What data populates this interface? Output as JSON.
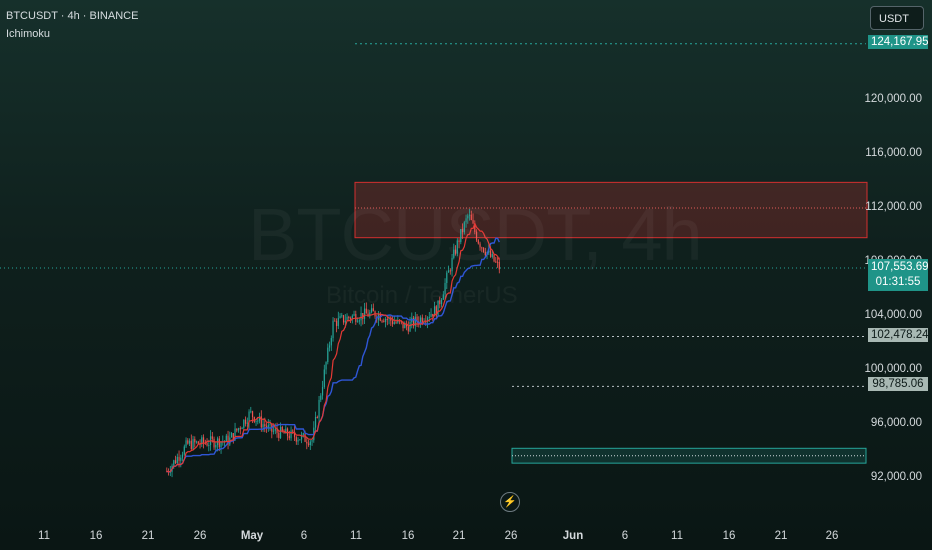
{
  "header": {
    "symbol_line": "BTCUSDT · 4h · BINANCE",
    "indicator": "Ichimoku"
  },
  "currency_button": "USDT",
  "watermark": {
    "main": "BTCUSDT, 4h",
    "sub": "Bitcoin / TetherUS"
  },
  "colors": {
    "up": "#26a69a",
    "down": "#ef5350",
    "tenkan": "#e53935",
    "kijun": "#2f56d6",
    "resistance_zone": "#d32f2f",
    "support_zone": "#26a69a"
  },
  "chart_data": {
    "type": "candlestick",
    "price_axis": {
      "ylim": [
        91000,
        126000
      ],
      "ticks": [
        {
          "value": 92000,
          "label": "92,000.00"
        },
        {
          "value": 96000,
          "label": "96,000.00"
        },
        {
          "value": 100000,
          "label": "100,000.00"
        },
        {
          "value": 104000,
          "label": "104,000.00"
        },
        {
          "value": 108000,
          "label": "108,000.00"
        },
        {
          "value": 112000,
          "label": "112,000.00"
        },
        {
          "value": 116000,
          "label": "116,000.00"
        },
        {
          "value": 120000,
          "label": "120,000.00"
        }
      ]
    },
    "time_axis": {
      "ticks": [
        {
          "label": "11",
          "bold": false
        },
        {
          "label": "16",
          "bold": false
        },
        {
          "label": "21",
          "bold": false
        },
        {
          "label": "26",
          "bold": false
        },
        {
          "label": "May",
          "bold": true
        },
        {
          "label": "6",
          "bold": false
        },
        {
          "label": "11",
          "bold": false
        },
        {
          "label": "16",
          "bold": false
        },
        {
          "label": "21",
          "bold": false
        },
        {
          "label": "26",
          "bold": false
        },
        {
          "label": "Jun",
          "bold": true
        },
        {
          "label": "6",
          "bold": false
        },
        {
          "label": "11",
          "bold": false
        },
        {
          "label": "16",
          "bold": false
        },
        {
          "label": "21",
          "bold": false
        },
        {
          "label": "26",
          "bold": false
        }
      ]
    },
    "price_tags": [
      {
        "value": 124167.95,
        "label": "124,167.95",
        "style": "target"
      },
      {
        "value": 107553.69,
        "label": "107,553.69",
        "countdown": "01:31:55",
        "style": "last"
      },
      {
        "value": 102478.24,
        "label": "102,478.24",
        "style": "level"
      },
      {
        "value": 98785.06,
        "label": "98,785.06",
        "style": "level"
      }
    ],
    "zones": [
      {
        "name": "resistance",
        "top": 113900,
        "bottom": 109800,
        "mid": 112000
      },
      {
        "name": "support",
        "top": 94200,
        "bottom": 93100
      }
    ],
    "key_path": [
      {
        "date": "2025-04-23",
        "price": 92500
      },
      {
        "date": "2025-04-25",
        "price": 94500
      },
      {
        "date": "2025-04-29",
        "price": 94800
      },
      {
        "date": "2025-05-01",
        "price": 96800
      },
      {
        "date": "2025-05-03",
        "price": 95500
      },
      {
        "date": "2025-05-07",
        "price": 94800
      },
      {
        "date": "2025-05-09",
        "price": 103500
      },
      {
        "date": "2025-05-11",
        "price": 104000
      },
      {
        "date": "2025-05-13",
        "price": 104200
      },
      {
        "date": "2025-05-16",
        "price": 103200
      },
      {
        "date": "2025-05-19",
        "price": 104500
      },
      {
        "date": "2025-05-21",
        "price": 109500
      },
      {
        "date": "2025-05-22",
        "price": 111500
      },
      {
        "date": "2025-05-23",
        "price": 109500
      },
      {
        "date": "2025-05-24",
        "price": 108500
      },
      {
        "date": "2025-05-25",
        "price": 107553.69
      }
    ]
  }
}
